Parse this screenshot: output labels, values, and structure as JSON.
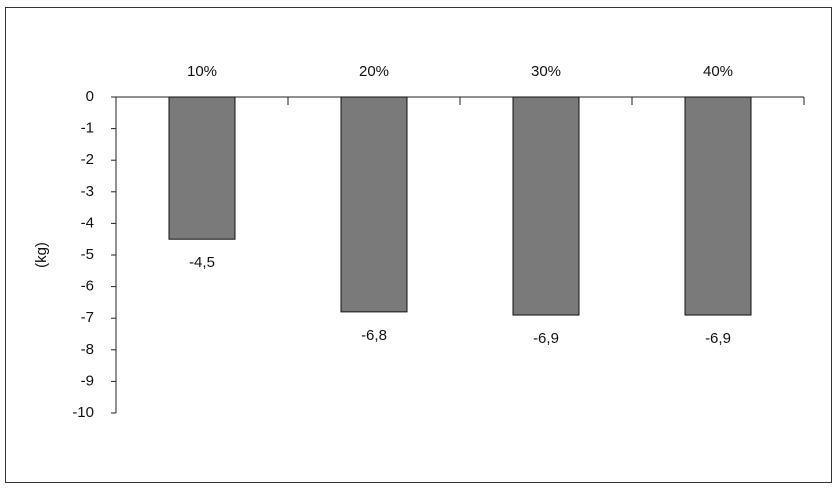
{
  "chart_data": {
    "type": "bar",
    "y_label": "(kg)",
    "categories": [
      "10%",
      "20%",
      "30%",
      "40%"
    ],
    "values": [
      -4.5,
      -6.8,
      -6.9,
      -6.9
    ],
    "value_labels": [
      "-4,5",
      "-6,8",
      "-6,9",
      "-6,9"
    ],
    "color": "#7a7a7a",
    "ylim": [
      -10,
      0
    ],
    "yticks": [
      0,
      -1,
      -2,
      -3,
      -4,
      -5,
      -6,
      -7,
      -8,
      -9,
      -10
    ],
    "grid": false
  }
}
